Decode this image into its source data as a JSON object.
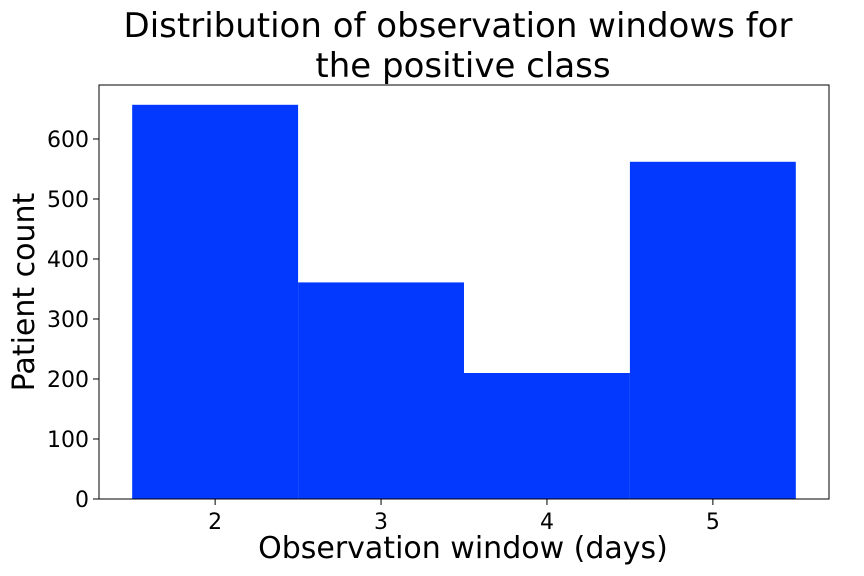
{
  "chart_data": {
    "type": "bar",
    "title_lines": [
      "Distribution of observation windows for",
      "the positive class"
    ],
    "xlabel": "Observation window (days)",
    "ylabel": "Patient count",
    "categories": [
      "2",
      "3",
      "4",
      "5"
    ],
    "values": [
      657,
      361,
      210,
      562
    ],
    "xlim": [
      1.3,
      5.7
    ],
    "ylim": [
      0,
      690
    ],
    "yticks": [
      0,
      100,
      200,
      300,
      400,
      500,
      600
    ],
    "grid": false,
    "bar_color": "#0339ff"
  }
}
